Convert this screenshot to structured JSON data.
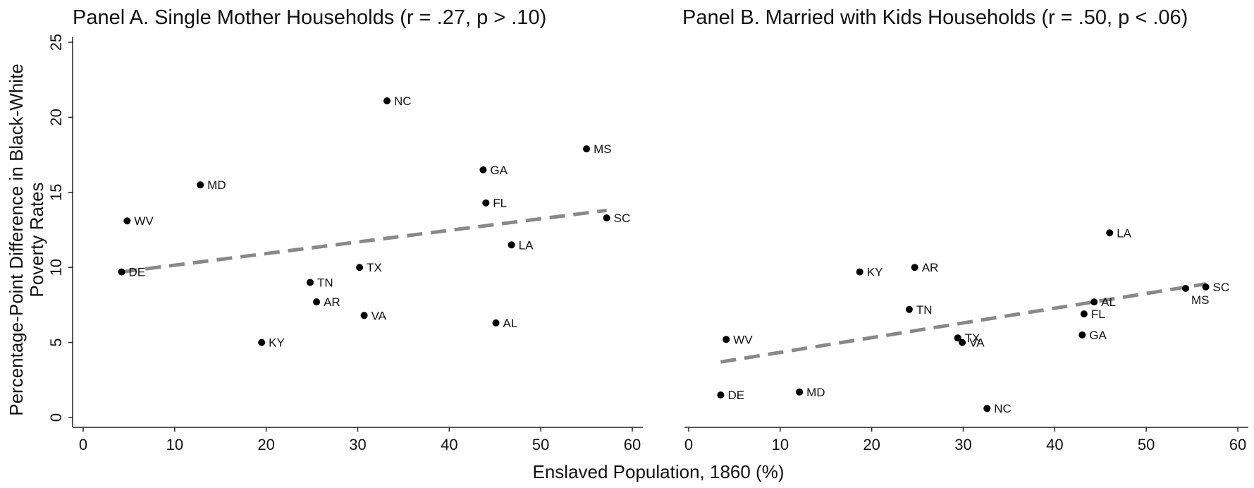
{
  "ylabel_line1": "Percentage-Point Difference in Black-White",
  "ylabel_line2": "Poverty Rates",
  "xlabel": "Enslaved Population, 1860 (%)",
  "colors": {
    "points": "#000000",
    "fit_line": "#888888",
    "axis": "#222222"
  },
  "chart_data": [
    {
      "type": "scatter",
      "title": "Panel A. Single Mother Households (r = .27, p > .10)",
      "xlim": [
        0,
        60
      ],
      "ylim": [
        0,
        25
      ],
      "xticks": [
        0,
        10,
        20,
        30,
        40,
        50,
        60
      ],
      "yticks": [
        0,
        5,
        10,
        15,
        20,
        25
      ],
      "y_axis_visible": true,
      "fit_line": {
        "style": "dashed",
        "x": [
          4.2,
          57.2
        ],
        "y": [
          9.7,
          13.8
        ]
      },
      "points": [
        {
          "label": "NC",
          "x": 33.2,
          "y": 21.1
        },
        {
          "label": "MS",
          "x": 55.0,
          "y": 17.9
        },
        {
          "label": "GA",
          "x": 43.7,
          "y": 16.5
        },
        {
          "label": "MD",
          "x": 12.8,
          "y": 15.5
        },
        {
          "label": "FL",
          "x": 44.0,
          "y": 14.3
        },
        {
          "label": "SC",
          "x": 57.2,
          "y": 13.3
        },
        {
          "label": "WV",
          "x": 4.8,
          "y": 13.1
        },
        {
          "label": "LA",
          "x": 46.8,
          "y": 11.5
        },
        {
          "label": "TX",
          "x": 30.2,
          "y": 10.0
        },
        {
          "label": "DE",
          "x": 4.2,
          "y": 9.7
        },
        {
          "label": "TN",
          "x": 24.8,
          "y": 9.0
        },
        {
          "label": "AR",
          "x": 25.5,
          "y": 7.7
        },
        {
          "label": "VA",
          "x": 30.7,
          "y": 6.8
        },
        {
          "label": "AL",
          "x": 45.1,
          "y": 6.3
        },
        {
          "label": "KY",
          "x": 19.5,
          "y": 5.0
        }
      ]
    },
    {
      "type": "scatter",
      "title": "Panel B. Married with Kids Households (r = .50, p < .06)",
      "xlim": [
        0,
        60
      ],
      "ylim": [
        0,
        25
      ],
      "xticks": [
        0,
        10,
        20,
        30,
        40,
        50,
        60
      ],
      "yticks": [],
      "y_axis_visible": false,
      "fit_line": {
        "style": "dashed",
        "x": [
          3.5,
          56.5
        ],
        "y": [
          3.7,
          8.9
        ]
      },
      "points": [
        {
          "label": "LA",
          "x": 46.0,
          "y": 12.3
        },
        {
          "label": "AR",
          "x": 24.7,
          "y": 10.0
        },
        {
          "label": "KY",
          "x": 18.7,
          "y": 9.7
        },
        {
          "label": "SC",
          "x": 56.5,
          "y": 8.7
        },
        {
          "label": "MS",
          "x": 54.3,
          "y": 8.6
        },
        {
          "label": "AL",
          "x": 44.3,
          "y": 7.7
        },
        {
          "label": "TN",
          "x": 24.1,
          "y": 7.2
        },
        {
          "label": "FL",
          "x": 43.2,
          "y": 6.9
        },
        {
          "label": "GA",
          "x": 43.0,
          "y": 5.5
        },
        {
          "label": "TX",
          "x": 29.4,
          "y": 5.3
        },
        {
          "label": "WV",
          "x": 4.1,
          "y": 5.2
        },
        {
          "label": "VA",
          "x": 29.9,
          "y": 5.0
        },
        {
          "label": "MD",
          "x": 12.1,
          "y": 1.7
        },
        {
          "label": "DE",
          "x": 3.5,
          "y": 1.5
        },
        {
          "label": "NC",
          "x": 32.6,
          "y": 0.6
        }
      ]
    }
  ]
}
